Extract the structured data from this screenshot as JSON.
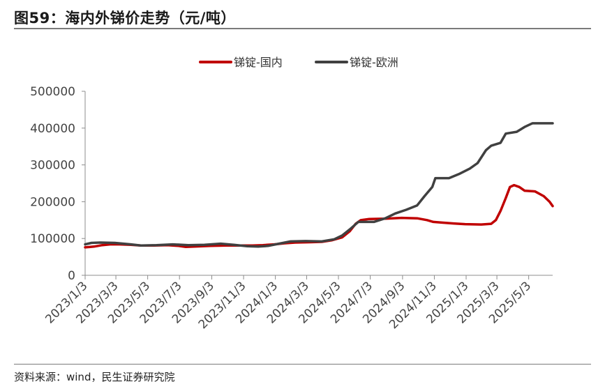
{
  "header": {
    "title": "图59：海内外锑价走势（元/吨）"
  },
  "footer": {
    "source": "资料来源：wind，民生证券研究院"
  },
  "chart_data": {
    "type": "line",
    "ylim": [
      0,
      500000
    ],
    "yticks": [
      "0",
      "100000",
      "200000",
      "300000",
      "400000",
      "500000"
    ],
    "xlim": [
      "2023-01-03",
      "2025-06-18"
    ],
    "xticks": [
      {
        "date": "2023-01-03",
        "label": "2023/1/3"
      },
      {
        "date": "2023-03-03",
        "label": "2023/3/3"
      },
      {
        "date": "2023-05-03",
        "label": "2023/5/3"
      },
      {
        "date": "2023-07-03",
        "label": "2023/7/3"
      },
      {
        "date": "2023-09-03",
        "label": "2023/9/3"
      },
      {
        "date": "2023-11-03",
        "label": "2023/11/3"
      },
      {
        "date": "2024-01-03",
        "label": "2024/1/3"
      },
      {
        "date": "2024-03-03",
        "label": "2024/3/3"
      },
      {
        "date": "2024-05-03",
        "label": "2024/5/3"
      },
      {
        "date": "2024-07-03",
        "label": "2024/7/3"
      },
      {
        "date": "2024-09-03",
        "label": "2024/9/3"
      },
      {
        "date": "2024-11-03",
        "label": "2024/11/3"
      },
      {
        "date": "2025-01-03",
        "label": "2025/1/3"
      },
      {
        "date": "2025-03-03",
        "label": "2025/3/3"
      },
      {
        "date": "2025-05-03",
        "label": "2025/5/3"
      }
    ],
    "legend": "top-center",
    "grid": false,
    "series": [
      {
        "name": "锑锭-国内",
        "color": "#c00000",
        "points": [
          [
            "2023-01-03",
            76000
          ],
          [
            "2023-01-20",
            78000
          ],
          [
            "2023-02-05",
            82000
          ],
          [
            "2023-02-20",
            84000
          ],
          [
            "2023-03-10",
            84000
          ],
          [
            "2023-04-01",
            83000
          ],
          [
            "2023-04-20",
            81000
          ],
          [
            "2023-05-15",
            81000
          ],
          [
            "2023-06-10",
            82000
          ],
          [
            "2023-07-01",
            80000
          ],
          [
            "2023-07-15",
            77000
          ],
          [
            "2023-08-01",
            78000
          ],
          [
            "2023-09-01",
            80000
          ],
          [
            "2023-10-01",
            81000
          ],
          [
            "2023-11-01",
            81000
          ],
          [
            "2023-11-20",
            81000
          ],
          [
            "2023-12-10",
            82000
          ],
          [
            "2024-01-01",
            84000
          ],
          [
            "2024-01-20",
            87000
          ],
          [
            "2024-02-10",
            89000
          ],
          [
            "2024-03-10",
            90000
          ],
          [
            "2024-04-01",
            91000
          ],
          [
            "2024-04-20",
            95000
          ],
          [
            "2024-05-10",
            103000
          ],
          [
            "2024-05-25",
            120000
          ],
          [
            "2024-06-05",
            140000
          ],
          [
            "2024-06-15",
            150000
          ],
          [
            "2024-07-01",
            153000
          ],
          [
            "2024-08-01",
            154000
          ],
          [
            "2024-09-01",
            156000
          ],
          [
            "2024-10-01",
            155000
          ],
          [
            "2024-10-20",
            150000
          ],
          [
            "2024-11-01",
            145000
          ],
          [
            "2024-11-20",
            143000
          ],
          [
            "2024-12-10",
            141000
          ],
          [
            "2025-01-01",
            139000
          ],
          [
            "2025-02-01",
            138000
          ],
          [
            "2025-02-20",
            140000
          ],
          [
            "2025-03-01",
            150000
          ],
          [
            "2025-03-10",
            175000
          ],
          [
            "2025-03-20",
            210000
          ],
          [
            "2025-03-28",
            240000
          ],
          [
            "2025-04-05",
            245000
          ],
          [
            "2025-04-15",
            240000
          ],
          [
            "2025-04-25",
            230000
          ],
          [
            "2025-05-15",
            228000
          ],
          [
            "2025-06-01",
            215000
          ],
          [
            "2025-06-12",
            200000
          ],
          [
            "2025-06-18",
            188000
          ]
        ]
      },
      {
        "name": "锑锭-欧洲",
        "color": "#404040",
        "points": [
          [
            "2023-01-03",
            84000
          ],
          [
            "2023-01-15",
            88000
          ],
          [
            "2023-02-01",
            89000
          ],
          [
            "2023-03-01",
            88000
          ],
          [
            "2023-04-01",
            84000
          ],
          [
            "2023-04-20",
            81000
          ],
          [
            "2023-05-20",
            82000
          ],
          [
            "2023-06-20",
            84000
          ],
          [
            "2023-07-20",
            82000
          ],
          [
            "2023-08-20",
            83000
          ],
          [
            "2023-09-20",
            86000
          ],
          [
            "2023-10-15",
            83000
          ],
          [
            "2023-11-10",
            79000
          ],
          [
            "2023-12-01",
            78000
          ],
          [
            "2023-12-20",
            80000
          ],
          [
            "2024-01-10",
            86000
          ],
          [
            "2024-02-01",
            92000
          ],
          [
            "2024-03-01",
            93000
          ],
          [
            "2024-04-01",
            92000
          ],
          [
            "2024-04-25",
            98000
          ],
          [
            "2024-05-10",
            108000
          ],
          [
            "2024-05-25",
            125000
          ],
          [
            "2024-06-10",
            145000
          ],
          [
            "2024-07-10",
            145000
          ],
          [
            "2024-08-01",
            155000
          ],
          [
            "2024-08-20",
            168000
          ],
          [
            "2024-09-10",
            178000
          ],
          [
            "2024-10-01",
            190000
          ],
          [
            "2024-10-15",
            215000
          ],
          [
            "2024-10-30",
            240000
          ],
          [
            "2024-11-05",
            264000
          ],
          [
            "2024-12-01",
            264000
          ],
          [
            "2024-12-20",
            275000
          ],
          [
            "2025-01-10",
            290000
          ],
          [
            "2025-01-25",
            305000
          ],
          [
            "2025-02-10",
            340000
          ],
          [
            "2025-02-20",
            352000
          ],
          [
            "2025-03-10",
            360000
          ],
          [
            "2025-03-20",
            385000
          ],
          [
            "2025-04-10",
            390000
          ],
          [
            "2025-04-25",
            403000
          ],
          [
            "2025-05-10",
            413000
          ],
          [
            "2025-06-18",
            413000
          ]
        ]
      }
    ]
  }
}
